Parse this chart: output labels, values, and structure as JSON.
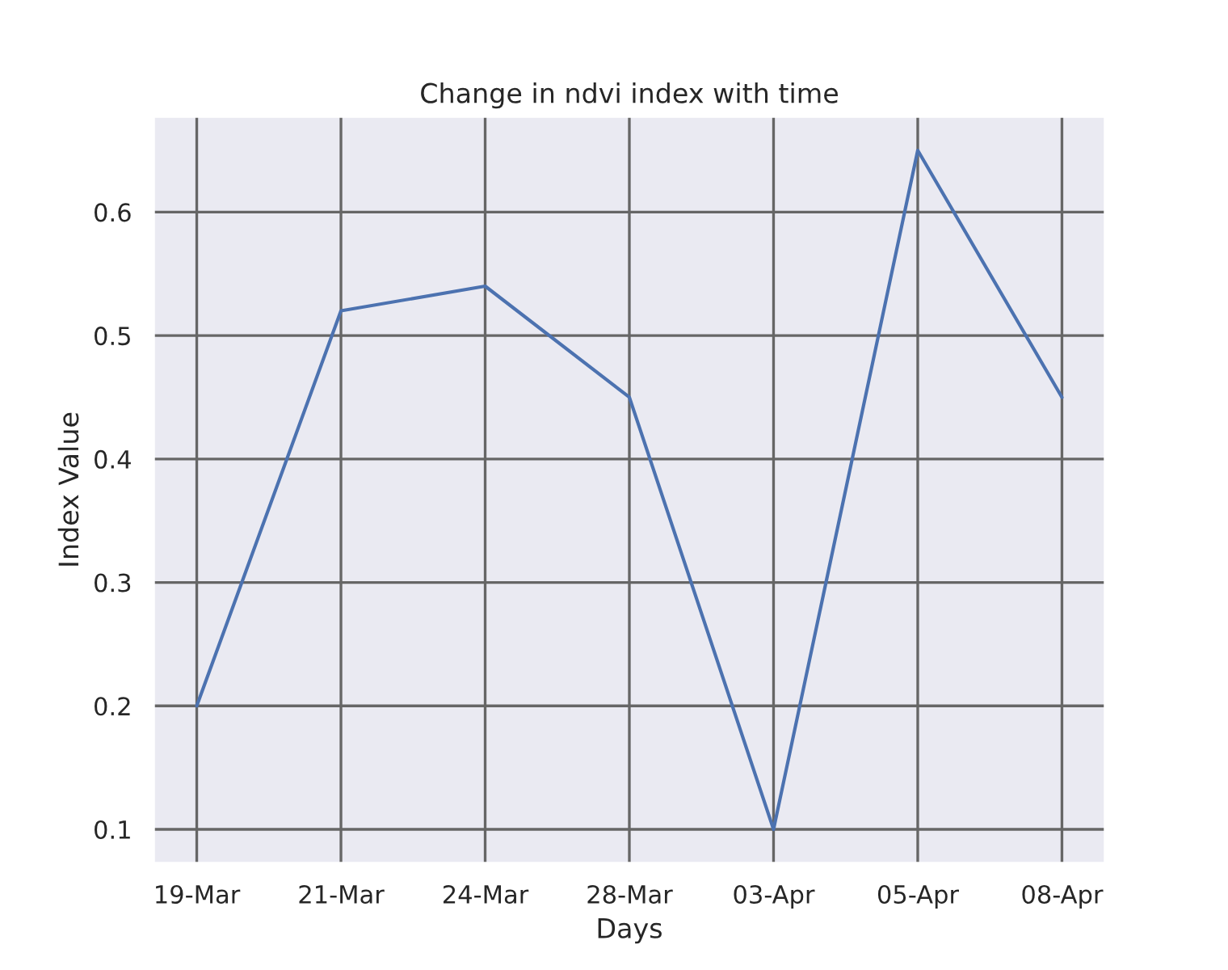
{
  "chart_data": {
    "type": "line",
    "title": "Change in ndvi index with time",
    "xlabel": "Days",
    "ylabel": "Index Value",
    "categories": [
      "19-Mar",
      "21-Mar",
      "24-Mar",
      "28-Mar",
      "03-Apr",
      "05-Apr",
      "08-Apr"
    ],
    "series": [
      {
        "color": "#4c72b0",
        "values": [
          0.2,
          0.52,
          0.54,
          0.45,
          0.1,
          0.65,
          0.45
        ]
      }
    ],
    "ylim": [
      0.0725,
      0.6775
    ],
    "yticks": [
      0.1,
      0.2,
      0.3,
      0.4,
      0.5,
      0.6
    ],
    "grid": true,
    "line_style": "solid"
  }
}
